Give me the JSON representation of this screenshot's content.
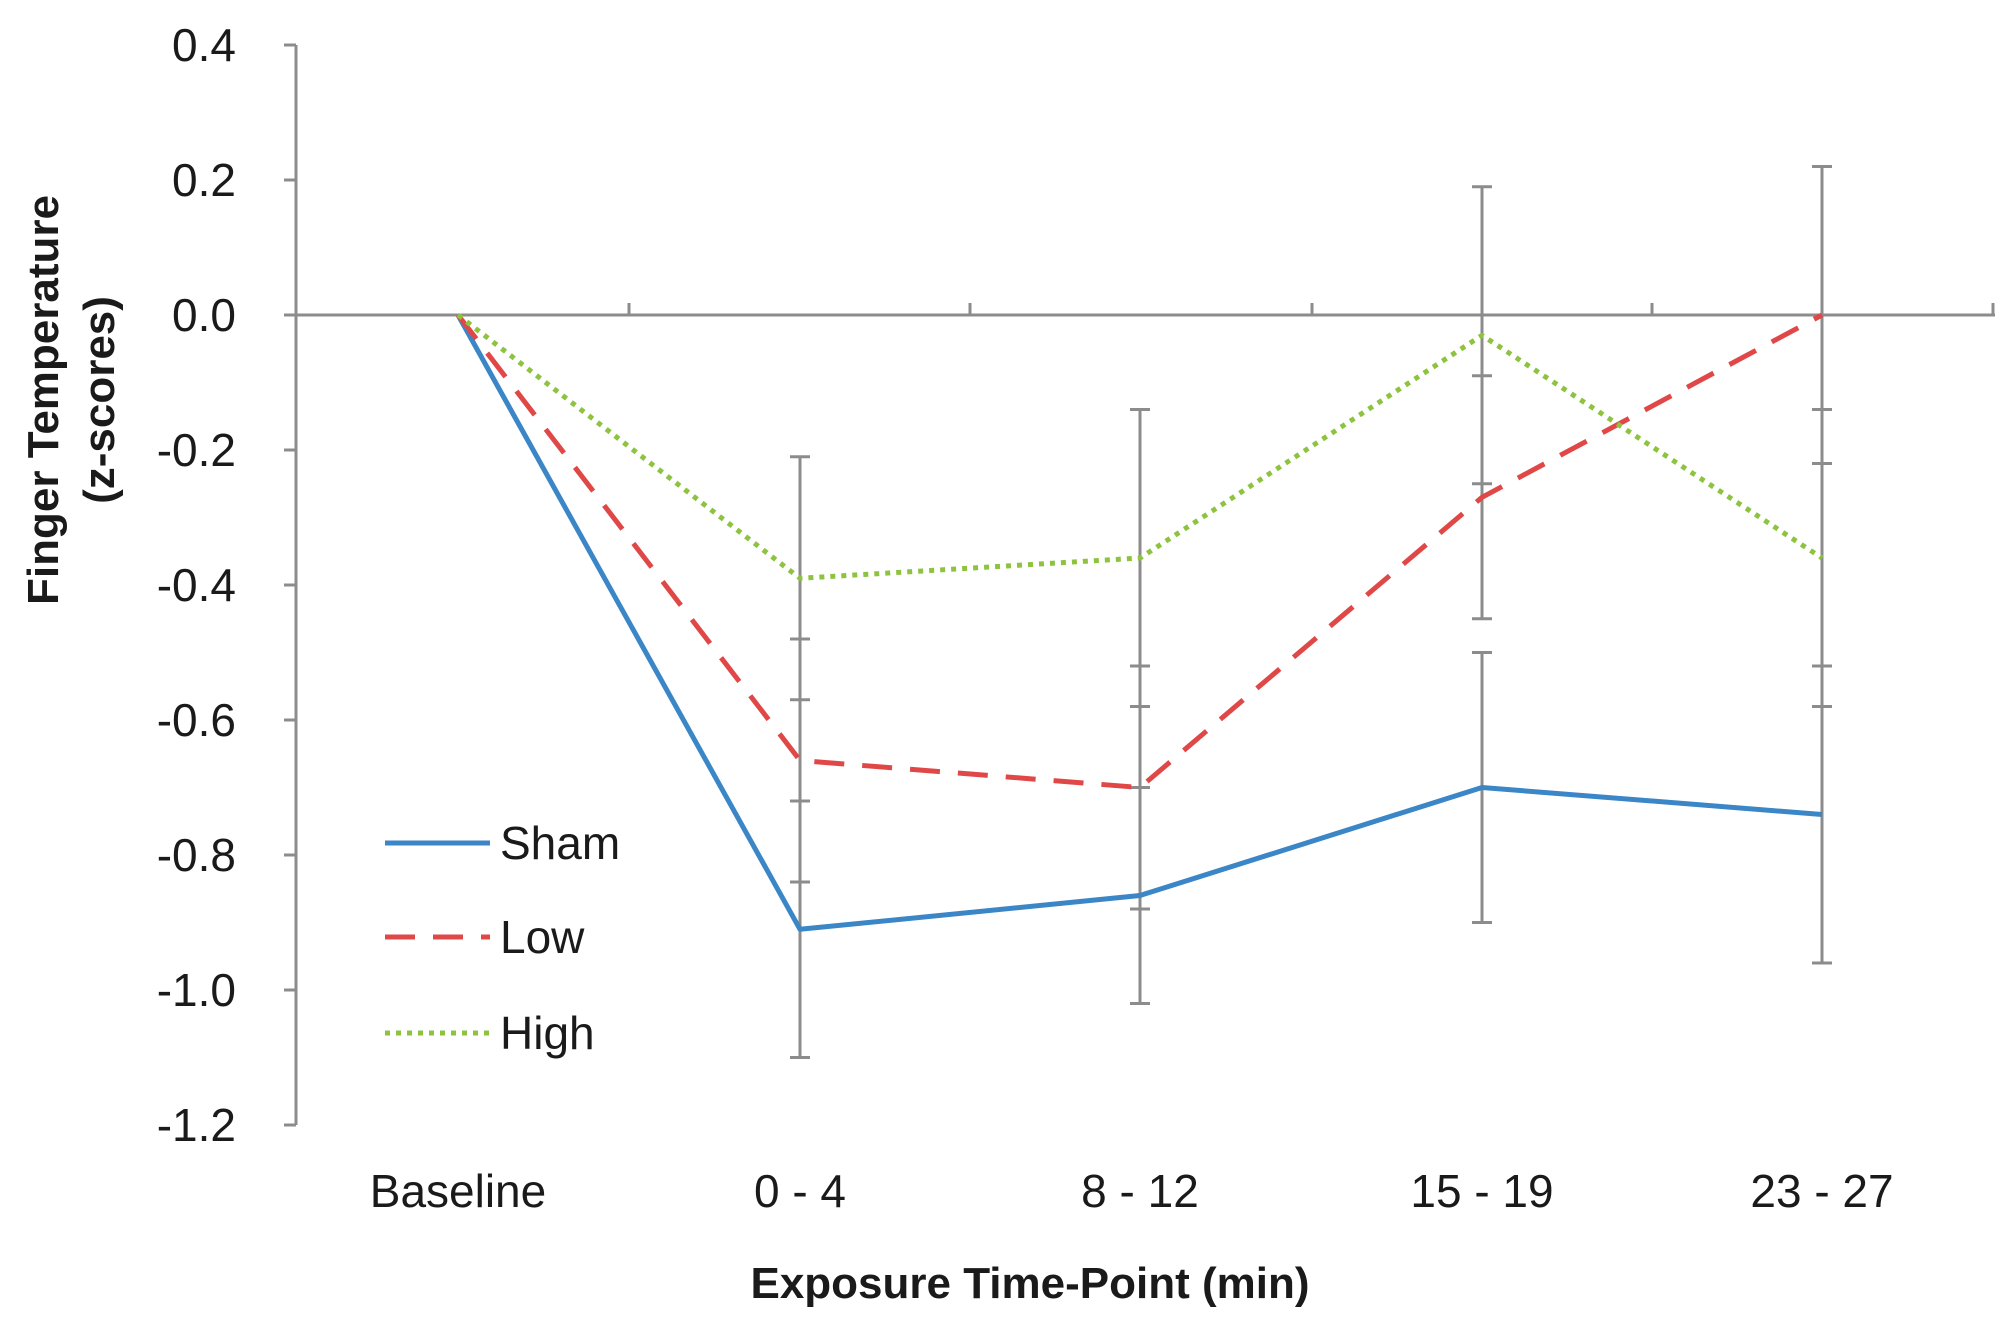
{
  "chart_data": {
    "type": "line",
    "title": "",
    "xlabel": "Exposure Time-Point (min)",
    "ylabel_line1": "Finger Temperature",
    "ylabel_line2": "(z-scores)",
    "categories": [
      "Baseline",
      "0 - 4",
      "8 - 12",
      "15 - 19",
      "23 - 27"
    ],
    "ylim": [
      -1.2,
      0.4
    ],
    "yticks": [
      0.4,
      0.2,
      0.0,
      -0.2,
      -0.4,
      -0.6,
      -0.8,
      -1.0,
      -1.2
    ],
    "ytick_labels": [
      "0.4",
      "0.2",
      "0.0",
      "-0.2",
      "-0.4",
      "-0.6",
      "-0.8",
      "-1.0",
      "-1.2"
    ],
    "grid": false,
    "legend_position": "bottom-left",
    "series": [
      {
        "name": "Sham",
        "style": "solid",
        "color": "#3b86c6",
        "values": [
          0.0,
          -0.91,
          -0.86,
          -0.7,
          -0.74
        ],
        "error": [
          null,
          0.19,
          0.16,
          0.2,
          0.22
        ]
      },
      {
        "name": "Low",
        "style": "dashed",
        "color": "#e04848",
        "values": [
          0.0,
          -0.66,
          -0.7,
          -0.27,
          0.0
        ],
        "error": [
          null,
          0.18,
          0.18,
          0.18,
          0.22
        ]
      },
      {
        "name": "High",
        "style": "dotted",
        "color": "#8dc33f",
        "values": [
          0.0,
          -0.39,
          -0.36,
          -0.03,
          -0.36
        ],
        "error": [
          null,
          0.18,
          0.22,
          0.22,
          0.22
        ]
      }
    ],
    "error_bar_color": "#8c8c8c"
  }
}
